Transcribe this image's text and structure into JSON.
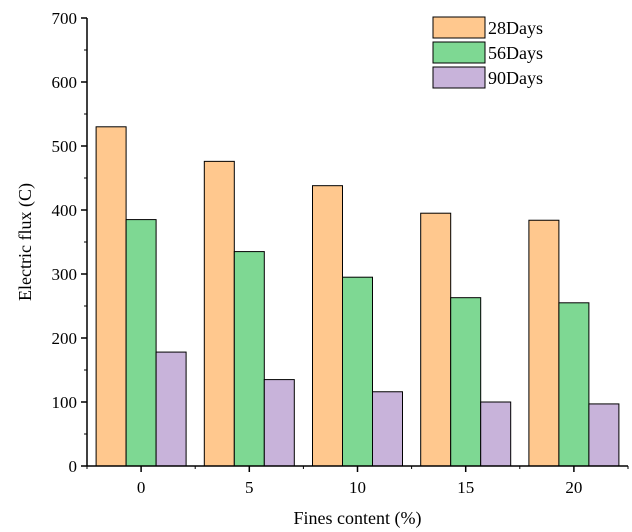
{
  "chart_data": {
    "type": "bar",
    "title": "",
    "xlabel": "Fines content (%)",
    "ylabel": "Electric flux (C)",
    "categories": [
      "0",
      "5",
      "10",
      "15",
      "20"
    ],
    "ylim": [
      0,
      700
    ],
    "yticks": [
      0,
      100,
      200,
      300,
      400,
      500,
      600,
      700
    ],
    "grid": false,
    "legend_position": "top-right",
    "series": [
      {
        "name": "28Days",
        "color": "#FFC88E",
        "values": [
          530,
          476,
          438,
          395,
          384
        ]
      },
      {
        "name": "56Days",
        "color": "#7ED893",
        "values": [
          385,
          335,
          295,
          263,
          255
        ]
      },
      {
        "name": "90Days",
        "color": "#C8B3DA",
        "values": [
          178,
          135,
          116,
          100,
          97
        ]
      }
    ]
  }
}
